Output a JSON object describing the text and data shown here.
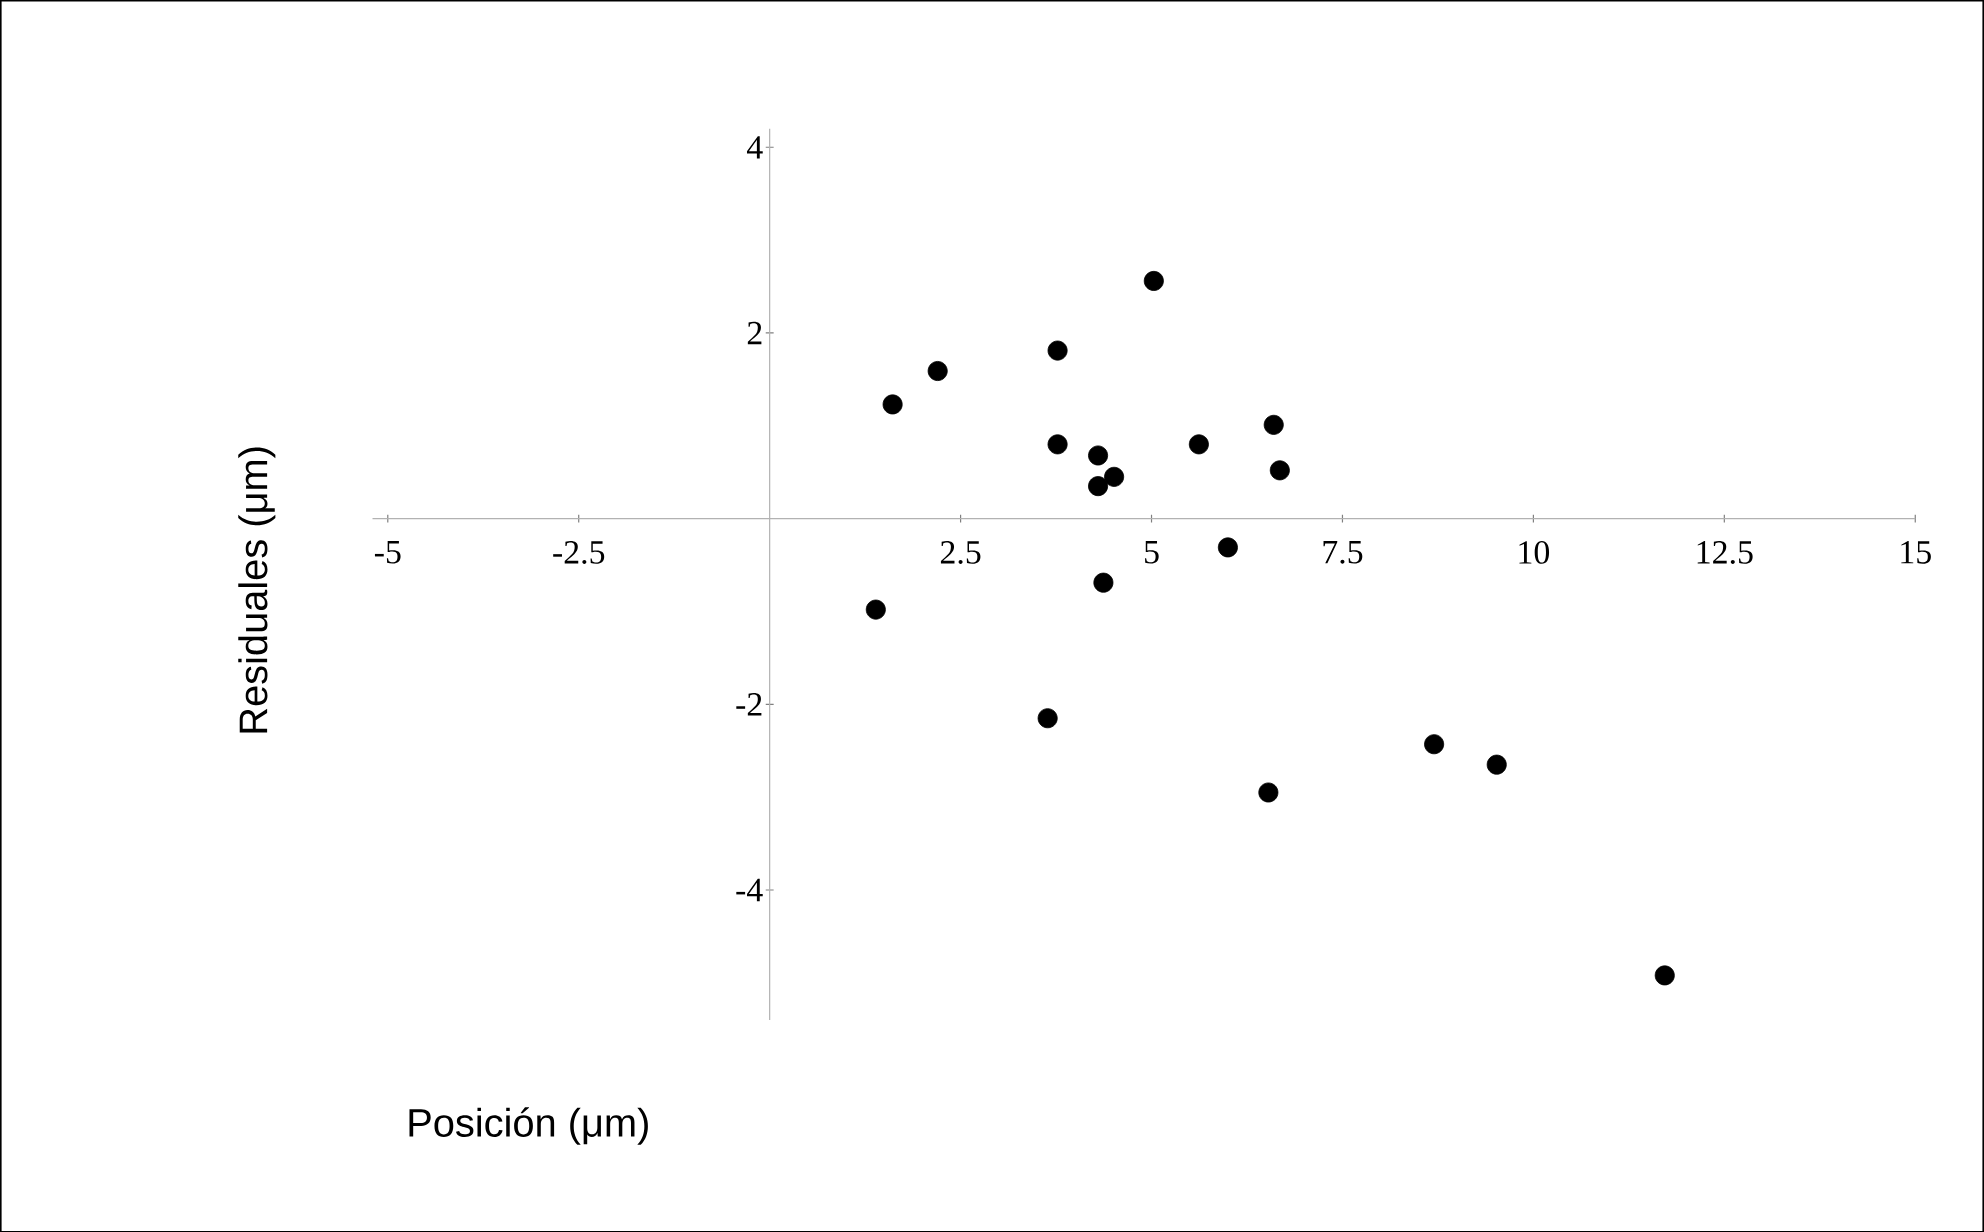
{
  "chart_data": {
    "type": "scatter",
    "xlabel": "Posición (μm)",
    "ylabel": "Residuales (μm)",
    "x": [
      1.61,
      2.2,
      3.77,
      5.03,
      3.77,
      4.3,
      4.51,
      4.3,
      5.62,
      6.6,
      6.68,
      6.0,
      4.37,
      1.39,
      3.64,
      6.53,
      8.7,
      9.52,
      11.72
    ],
    "series": [
      {
        "color": "#000000",
        "values": [
          1.23,
          1.59,
          1.81,
          2.56,
          0.8,
          0.68,
          0.45,
          0.35,
          0.8,
          1.01,
          0.52,
          -0.31,
          -0.69,
          -0.98,
          -2.15,
          -2.95,
          -2.43,
          -2.65,
          -4.92
        ]
      }
    ],
    "xlim": [
      -5.2,
      15
    ],
    "ylim": [
      -5.4,
      4.2
    ],
    "xticks": [
      -5,
      -2.5,
      2.5,
      5,
      7.5,
      10,
      12.5,
      15
    ],
    "yticks": [
      -4,
      -2,
      2,
      4
    ],
    "marker": "circle",
    "grid": false
  }
}
